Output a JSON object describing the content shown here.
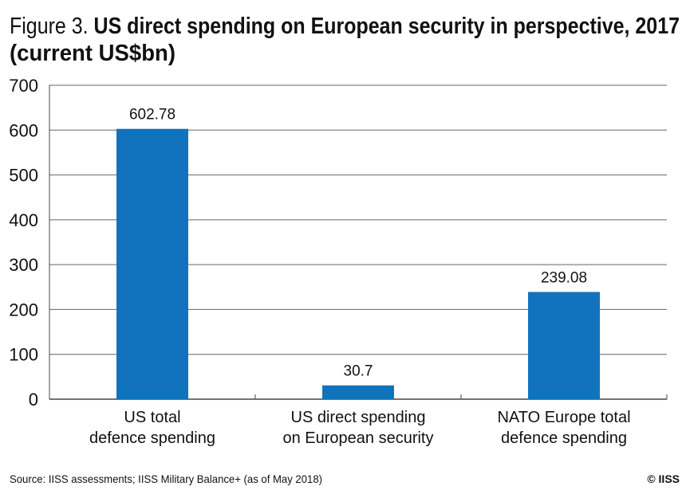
{
  "title": {
    "prefix": "Figure 3.",
    "main": "US direct spending on European security in perspective, 2017",
    "line2": "(current US$bn)"
  },
  "source": "Source: IISS assessments; IISS Military Balance+ (as of May 2018)",
  "copyright": "© IISS",
  "chart_data": {
    "type": "bar",
    "title": "Figure 3. US direct spending on European security in perspective, 2017 (current US$bn)",
    "categories": [
      [
        "US total",
        "defence spending"
      ],
      [
        "US direct spending",
        "on European security"
      ],
      [
        "NATO Europe total",
        "defence spending"
      ]
    ],
    "values": [
      602.78,
      30.7,
      239.08
    ],
    "data_labels": [
      "602.78",
      "30.7",
      "239.08"
    ],
    "yticks": [
      "0",
      "100",
      "200",
      "300",
      "400",
      "500",
      "600",
      "700"
    ],
    "ylim": [
      0,
      700
    ],
    "grid": true,
    "bar_color": "#1173BD"
  }
}
